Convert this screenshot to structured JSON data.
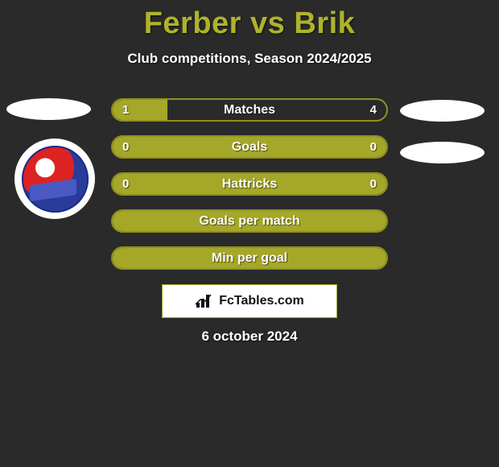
{
  "title": "Ferber vs Brik",
  "subtitle": "Club competitions, Season 2024/2025",
  "date": "6 october 2024",
  "brand_text": "FcTables.com",
  "colors": {
    "background": "#2a2a2a",
    "accent": "#a4a728",
    "accent_border": "#8f921e",
    "title_color": "#afb32a",
    "text": "#ffffff"
  },
  "bars": [
    {
      "label": "Matches",
      "left": "1",
      "right": "4",
      "fill_left_pct": 20,
      "fill_full": false
    },
    {
      "label": "Goals",
      "left": "0",
      "right": "0",
      "fill_left_pct": 0,
      "fill_full": true
    },
    {
      "label": "Hattricks",
      "left": "0",
      "right": "0",
      "fill_left_pct": 0,
      "fill_full": true
    },
    {
      "label": "Goals per match",
      "left": "",
      "right": "",
      "fill_left_pct": 0,
      "fill_full": true
    },
    {
      "label": "Min per goal",
      "left": "",
      "right": "",
      "fill_left_pct": 0,
      "fill_full": true
    }
  ]
}
